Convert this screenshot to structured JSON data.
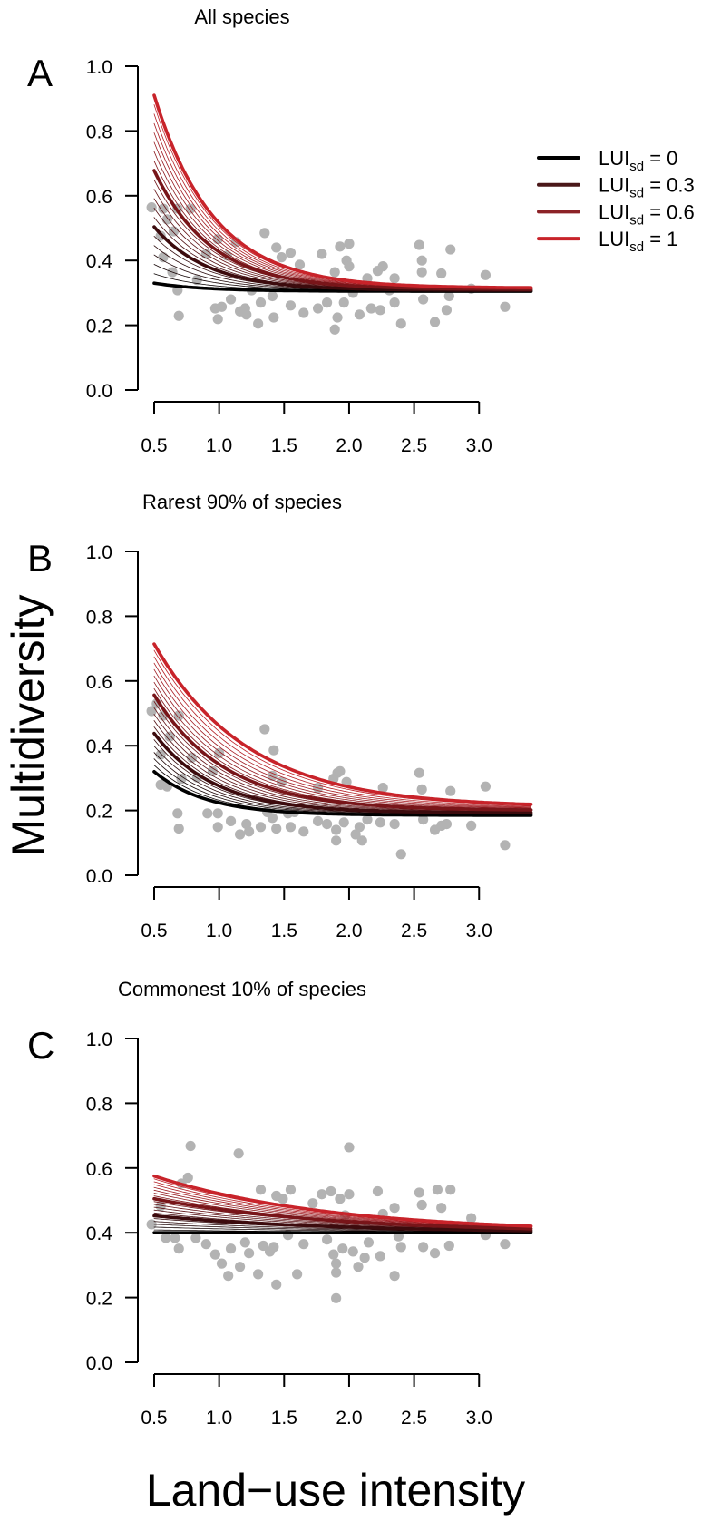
{
  "chart_data": {
    "type": "scatter",
    "ylabel": "Multidiversity",
    "xlabel": "Land−use intensity",
    "point_color": "#b3b3b3",
    "curve_color_low": "#000000",
    "curve_color_high": "#c8232a",
    "legend": {
      "placement": "right of panel A",
      "entries": [
        {
          "label": "LUI",
          "sub": "sd",
          "suffix": " = 0",
          "lui_sd": 0,
          "color": "#000000"
        },
        {
          "label": "LUI",
          "sub": "sd",
          "suffix": " = 0.3",
          "lui_sd": 0.3,
          "color": "#4a1819"
        },
        {
          "label": "LUI",
          "sub": "sd",
          "suffix": " = 0.6",
          "lui_sd": 0.6,
          "color": "#8c2227"
        },
        {
          "label": "LUI",
          "sub": "sd",
          "suffix": " = 1",
          "lui_sd": 1,
          "color": "#c8232a"
        }
      ]
    },
    "xlim": [
      0.5,
      3.4
    ],
    "ylim": [
      0,
      1
    ],
    "xticks": [
      "0.5",
      "1.0",
      "1.5",
      "2.0",
      "2.5",
      "3.0"
    ],
    "yticks": [
      "0.0",
      "0.2",
      "0.4",
      "0.6",
      "0.8",
      "1.0"
    ],
    "panels": [
      {
        "letter": "A",
        "title": "All species",
        "curves": {
          "start_at_sd0": 0.33,
          "start_at_sd1": 0.91,
          "asym_at_sd0": 0.305,
          "asym_at_sd1": 0.315,
          "decay_at_sd0": 2.5,
          "decay_at_sd1": 2.18
        },
        "points": [
          [
            0.48,
            0.564
          ],
          [
            0.57,
            0.56
          ],
          [
            0.68,
            0.56
          ],
          [
            0.78,
            0.56
          ],
          [
            0.6,
            0.527
          ],
          [
            0.65,
            0.49
          ],
          [
            0.55,
            0.476
          ],
          [
            0.57,
            0.41
          ],
          [
            0.64,
            0.364
          ],
          [
            0.68,
            0.308
          ],
          [
            0.69,
            0.229
          ],
          [
            0.83,
            0.34
          ],
          [
            0.99,
            0.219
          ],
          [
            0.97,
            0.252
          ],
          [
            1.02,
            0.257
          ],
          [
            1.06,
            0.415
          ],
          [
            1.09,
            0.28
          ],
          [
            1.16,
            0.243
          ],
          [
            1.2,
            0.252
          ],
          [
            1.21,
            0.233
          ],
          [
            1.3,
            0.205
          ],
          [
            1.32,
            0.27
          ],
          [
            1.35,
            0.485
          ],
          [
            1.41,
            0.29
          ],
          [
            1.42,
            0.224
          ],
          [
            1.44,
            0.44
          ],
          [
            1.48,
            0.41
          ],
          [
            1.55,
            0.424
          ],
          [
            1.55,
            0.261
          ],
          [
            1.62,
            0.387
          ],
          [
            1.65,
            0.238
          ],
          [
            1.72,
            0.326
          ],
          [
            1.79,
            0.42
          ],
          [
            1.83,
            0.27
          ],
          [
            1.89,
            0.364
          ],
          [
            1.89,
            0.187
          ],
          [
            1.91,
            0.224
          ],
          [
            1.93,
            0.443
          ],
          [
            2.0,
            0.452
          ],
          [
            1.98,
            0.4
          ],
          [
            2.0,
            0.382
          ],
          [
            1.96,
            0.27
          ],
          [
            2.03,
            0.3
          ],
          [
            2.08,
            0.233
          ],
          [
            2.14,
            0.345
          ],
          [
            2.17,
            0.252
          ],
          [
            2.22,
            0.368
          ],
          [
            2.26,
            0.382
          ],
          [
            2.24,
            0.247
          ],
          [
            2.35,
            0.345
          ],
          [
            2.35,
            0.27
          ],
          [
            2.4,
            0.205
          ],
          [
            2.54,
            0.448
          ],
          [
            2.56,
            0.4
          ],
          [
            2.56,
            0.364
          ],
          [
            2.57,
            0.28
          ],
          [
            2.66,
            0.21
          ],
          [
            2.71,
            0.36
          ],
          [
            2.75,
            0.247
          ],
          [
            2.77,
            0.29
          ],
          [
            2.78,
            0.434
          ],
          [
            2.94,
            0.313
          ],
          [
            3.05,
            0.355
          ],
          [
            3.2,
            0.257
          ],
          [
            0.9,
            0.42
          ],
          [
            0.99,
            0.466
          ],
          [
            1.13,
            0.457
          ],
          [
            1.25,
            0.308
          ],
          [
            1.76,
            0.252
          ],
          [
            2.31,
            0.308
          ]
        ]
      },
      {
        "letter": "B",
        "title": "Rarest 90% of species",
        "curves": {
          "start_at_sd0": 0.32,
          "start_at_sd1": 0.714,
          "asym_at_sd0": 0.185,
          "asym_at_sd1": 0.21,
          "decay_at_sd0": 2.5,
          "decay_at_sd1": 1.39
        },
        "points": [
          [
            0.48,
            0.507
          ],
          [
            0.52,
            0.53
          ],
          [
            0.57,
            0.493
          ],
          [
            0.69,
            0.493
          ],
          [
            0.62,
            0.428
          ],
          [
            0.55,
            0.372
          ],
          [
            0.55,
            0.279
          ],
          [
            0.6,
            0.274
          ],
          [
            0.71,
            0.298
          ],
          [
            0.68,
            0.191
          ],
          [
            0.69,
            0.144
          ],
          [
            0.79,
            0.363
          ],
          [
            0.83,
            0.302
          ],
          [
            0.91,
            0.191
          ],
          [
            0.95,
            0.321
          ],
          [
            0.99,
            0.149
          ],
          [
            1.0,
            0.377
          ],
          [
            0.99,
            0.191
          ],
          [
            1.09,
            0.167
          ],
          [
            1.16,
            0.126
          ],
          [
            1.21,
            0.158
          ],
          [
            1.23,
            0.135
          ],
          [
            1.32,
            0.149
          ],
          [
            1.35,
            0.451
          ],
          [
            1.37,
            0.195
          ],
          [
            1.41,
            0.177
          ],
          [
            1.42,
            0.386
          ],
          [
            1.44,
            0.144
          ],
          [
            1.48,
            0.288
          ],
          [
            1.53,
            0.191
          ],
          [
            1.55,
            0.149
          ],
          [
            1.65,
            0.135
          ],
          [
            1.76,
            0.167
          ],
          [
            1.83,
            0.158
          ],
          [
            1.88,
            0.298
          ],
          [
            1.91,
            0.316
          ],
          [
            1.93,
            0.321
          ],
          [
            1.9,
            0.14
          ],
          [
            1.9,
            0.107
          ],
          [
            1.96,
            0.163
          ],
          [
            1.98,
            0.288
          ],
          [
            2.05,
            0.126
          ],
          [
            2.08,
            0.149
          ],
          [
            2.1,
            0.107
          ],
          [
            2.14,
            0.172
          ],
          [
            2.24,
            0.163
          ],
          [
            2.26,
            0.27
          ],
          [
            2.35,
            0.158
          ],
          [
            2.4,
            0.065
          ],
          [
            2.54,
            0.316
          ],
          [
            2.56,
            0.265
          ],
          [
            2.57,
            0.172
          ],
          [
            2.66,
            0.14
          ],
          [
            2.71,
            0.153
          ],
          [
            2.75,
            0.158
          ],
          [
            2.78,
            0.26
          ],
          [
            2.94,
            0.153
          ],
          [
            3.05,
            0.274
          ],
          [
            3.2,
            0.093
          ],
          [
            1.76,
            0.27
          ],
          [
            1.41,
            0.307
          ],
          [
            1.58,
            0.195
          ]
        ]
      },
      {
        "letter": "C",
        "title": "Commonest 10% of species",
        "curves": {
          "start_at_sd0": 0.4,
          "start_at_sd1": 0.575,
          "asym_at_sd0": 0.4,
          "asym_at_sd1": 0.4,
          "decay_at_sd0": 0.74,
          "decay_at_sd1": 0.74
        },
        "points": [
          [
            0.48,
            0.426
          ],
          [
            0.78,
            0.668
          ],
          [
            0.76,
            0.57
          ],
          [
            0.71,
            0.552
          ],
          [
            0.59,
            0.384
          ],
          [
            0.66,
            0.384
          ],
          [
            0.69,
            0.351
          ],
          [
            0.82,
            0.384
          ],
          [
            0.9,
            0.365
          ],
          [
            0.97,
            0.333
          ],
          [
            1.02,
            0.305
          ],
          [
            1.07,
            0.267
          ],
          [
            1.09,
            0.351
          ],
          [
            1.15,
            0.645
          ],
          [
            1.16,
            0.295
          ],
          [
            1.2,
            0.37
          ],
          [
            1.23,
            0.337
          ],
          [
            1.32,
            0.533
          ],
          [
            1.3,
            0.272
          ],
          [
            1.34,
            0.36
          ],
          [
            1.39,
            0.342
          ],
          [
            1.42,
            0.356
          ],
          [
            1.44,
            0.24
          ],
          [
            1.44,
            0.514
          ],
          [
            1.49,
            0.505
          ],
          [
            1.53,
            0.393
          ],
          [
            1.55,
            0.533
          ],
          [
            1.6,
            0.272
          ],
          [
            1.65,
            0.365
          ],
          [
            1.72,
            0.491
          ],
          [
            1.79,
            0.519
          ],
          [
            1.83,
            0.379
          ],
          [
            1.86,
            0.528
          ],
          [
            1.88,
            0.333
          ],
          [
            1.9,
            0.305
          ],
          [
            1.9,
            0.277
          ],
          [
            1.9,
            0.198
          ],
          [
            1.93,
            0.505
          ],
          [
            1.95,
            0.351
          ],
          [
            2.0,
            0.664
          ],
          [
            2.0,
            0.519
          ],
          [
            2.03,
            0.342
          ],
          [
            2.07,
            0.295
          ],
          [
            2.12,
            0.323
          ],
          [
            2.15,
            0.37
          ],
          [
            2.22,
            0.528
          ],
          [
            2.24,
            0.328
          ],
          [
            2.26,
            0.458
          ],
          [
            2.35,
            0.477
          ],
          [
            2.35,
            0.267
          ],
          [
            2.38,
            0.389
          ],
          [
            2.4,
            0.356
          ],
          [
            2.54,
            0.524
          ],
          [
            2.56,
            0.486
          ],
          [
            2.57,
            0.356
          ],
          [
            2.66,
            0.337
          ],
          [
            2.68,
            0.533
          ],
          [
            2.71,
            0.477
          ],
          [
            2.77,
            0.36
          ],
          [
            2.78,
            0.533
          ],
          [
            2.94,
            0.445
          ],
          [
            3.05,
            0.393
          ],
          [
            3.2,
            0.365
          ],
          [
            0.55,
            0.482
          ],
          [
            1.97,
            0.454
          ],
          [
            2.46,
            0.426
          ]
        ]
      }
    ]
  }
}
